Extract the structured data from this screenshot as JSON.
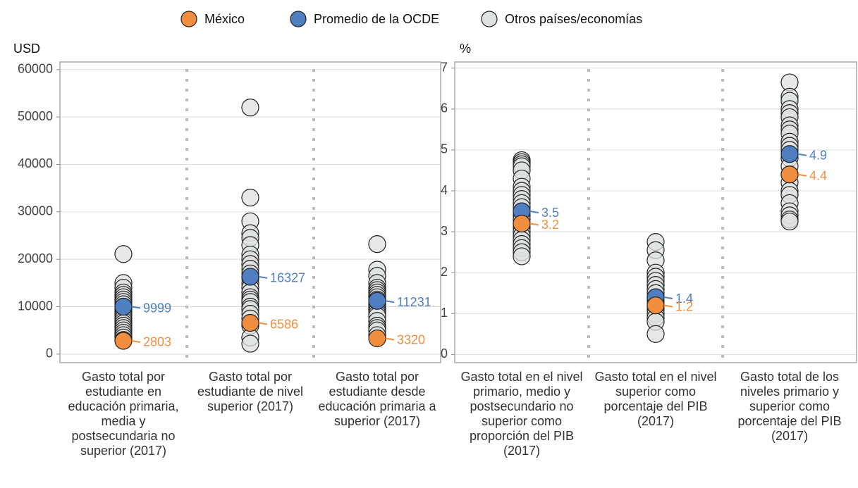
{
  "chart_data": [
    {
      "type": "strip",
      "ylabel": "USD",
      "categories": [
        "Gasto total por estudiante en educación primaria, media y postsecundaria no superior (2017)",
        "Gasto total por estudiante de nivel superior (2017)",
        "Gasto total por estudiante desde educación primaria a superior (2017)"
      ],
      "ylim": [
        -1800,
        61600
      ],
      "yticks": [
        0,
        10000,
        20000,
        30000,
        40000,
        50000,
        60000
      ],
      "grid": true,
      "series": [
        {
          "name": "México",
          "color": "#f28e3f",
          "values": [
            2803,
            6586,
            3320
          ]
        },
        {
          "name": "Promedio de la OCDE",
          "color": "#4f7fc1",
          "values": [
            9999,
            16327,
            11231
          ]
        },
        {
          "name": "Otros países/economías",
          "color": "#dfe2e2",
          "values": [
            [
              21100,
              15000,
              14000,
              13000,
              12500,
              12000,
              11500,
              11000,
              10500,
              10000,
              9500,
              9000,
              8500,
              8000,
              7500,
              7000,
              6500,
              6000,
              5500,
              5000,
              4500,
              4000,
              3500,
              3000
            ],
            [
              52000,
              33000,
              28000,
              25500,
              24500,
              23000,
              21000,
              20000,
              19000,
              18000,
              17000,
              16000,
              15000,
              14000,
              13000,
              12000,
              11500,
              11000,
              10000,
              9500,
              8500,
              7500,
              6000,
              3500,
              2200
            ],
            [
              23200,
              17800,
              16500,
              15000,
              14000,
              13500,
              13000,
              12500,
              12000,
              11500,
              11000,
              10500,
              10000,
              9500,
              9000,
              8500,
              8000,
              7000,
              6000,
              5500,
              5000,
              4000
            ]
          ]
        }
      ]
    },
    {
      "type": "strip",
      "ylabel": "%",
      "categories": [
        "Gasto total en el nivel primario, medio y postsecundario no superior como proporción del PIB (2017)",
        "Gasto total en el nivel superior como porcentaje del PIB (2017)",
        "Gasto total de los niveles primario y superior como porcentaje del PIB (2017)"
      ],
      "ylim": [
        -0.2,
        7.15
      ],
      "yticks": [
        0,
        1,
        2,
        3,
        4,
        5,
        6,
        7
      ],
      "grid": true,
      "series": [
        {
          "color": "#f28e3f",
          "values": [
            3.2,
            1.2,
            4.4
          ]
        },
        {
          "color": "#4f7fc1",
          "values": [
            3.5,
            1.4,
            4.9
          ]
        },
        {
          "color": "#dfe2e2",
          "values": [
            [
              4.75,
              4.7,
              4.65,
              4.6,
              4.5,
              4.3,
              4.1,
              4.0,
              3.9,
              3.8,
              3.7,
              3.6,
              3.5,
              3.4,
              3.3,
              3.2,
              3.1,
              3.0,
              2.9,
              2.8,
              2.7,
              2.6,
              2.5,
              2.4
            ],
            [
              2.75,
              2.55,
              2.3,
              2.0,
              1.9,
              1.8,
              1.7,
              1.6,
              1.5,
              1.4,
              1.3,
              1.2,
              1.1,
              1.0,
              0.9,
              0.8,
              0.5
            ],
            [
              6.65,
              6.3,
              6.2,
              6.0,
              5.9,
              5.8,
              5.6,
              5.5,
              5.4,
              5.2,
              5.1,
              5.0,
              4.8,
              4.6,
              4.4,
              4.2,
              4.0,
              3.9,
              3.7,
              3.5,
              3.4,
              3.3,
              3.25
            ]
          ]
        }
      ]
    }
  ]
}
